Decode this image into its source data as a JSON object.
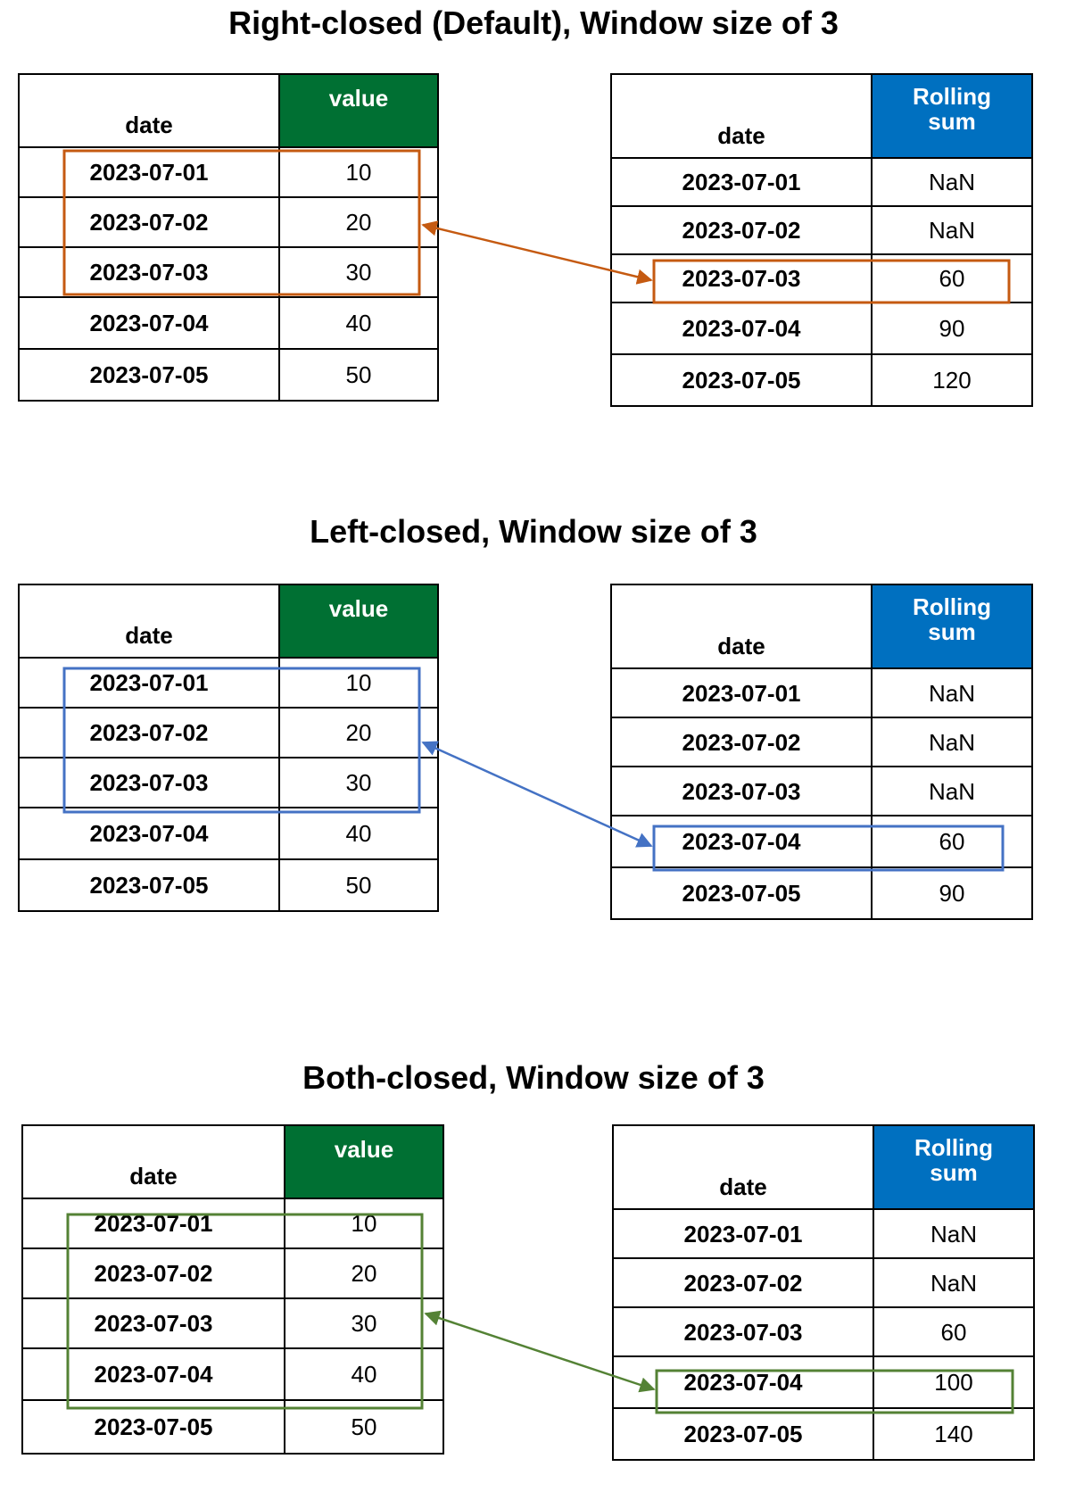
{
  "panels": [
    {
      "title": "Right-closed (Default), Window size of 3",
      "input_headers": {
        "date": "date",
        "value": "value"
      },
      "output_headers": {
        "date": "date",
        "sum": "Rolling\nsum"
      },
      "rows": [
        {
          "date": "2023-07-01",
          "value": "10",
          "sum": "NaN"
        },
        {
          "date": "2023-07-02",
          "value": "20",
          "sum": "NaN"
        },
        {
          "date": "2023-07-03",
          "value": "30",
          "sum": "60"
        },
        {
          "date": "2023-07-04",
          "value": "40",
          "sum": "90"
        },
        {
          "date": "2023-07-05",
          "value": "50",
          "sum": "120"
        }
      ],
      "window_rows": [
        1,
        2,
        3
      ],
      "result_row": 3,
      "highlight_color": "#c55a11"
    },
    {
      "title": "Left-closed, Window size of 3",
      "input_headers": {
        "date": "date",
        "value": "value"
      },
      "output_headers": {
        "date": "date",
        "sum": "Rolling\nsum"
      },
      "rows": [
        {
          "date": "2023-07-01",
          "value": "10",
          "sum": "NaN"
        },
        {
          "date": "2023-07-02",
          "value": "20",
          "sum": "NaN"
        },
        {
          "date": "2023-07-03",
          "value": "30",
          "sum": "NaN"
        },
        {
          "date": "2023-07-04",
          "value": "40",
          "sum": "60"
        },
        {
          "date": "2023-07-05",
          "value": "50",
          "sum": "90"
        }
      ],
      "window_rows": [
        1,
        2,
        3
      ],
      "result_row": 4,
      "highlight_color": "#4472c4"
    },
    {
      "title": "Both-closed, Window size of 3",
      "input_headers": {
        "date": "date",
        "value": "value"
      },
      "output_headers": {
        "date": "date",
        "sum": "Rolling\nsum"
      },
      "rows": [
        {
          "date": "2023-07-01",
          "value": "10",
          "sum": "NaN"
        },
        {
          "date": "2023-07-02",
          "value": "20",
          "sum": "NaN"
        },
        {
          "date": "2023-07-03",
          "value": "30",
          "sum": "60"
        },
        {
          "date": "2023-07-04",
          "value": "40",
          "sum": "100"
        },
        {
          "date": "2023-07-05",
          "value": "50",
          "sum": "140"
        }
      ],
      "window_rows": [
        1,
        2,
        3,
        4
      ],
      "result_row": 4,
      "highlight_color": "#548235"
    }
  ]
}
